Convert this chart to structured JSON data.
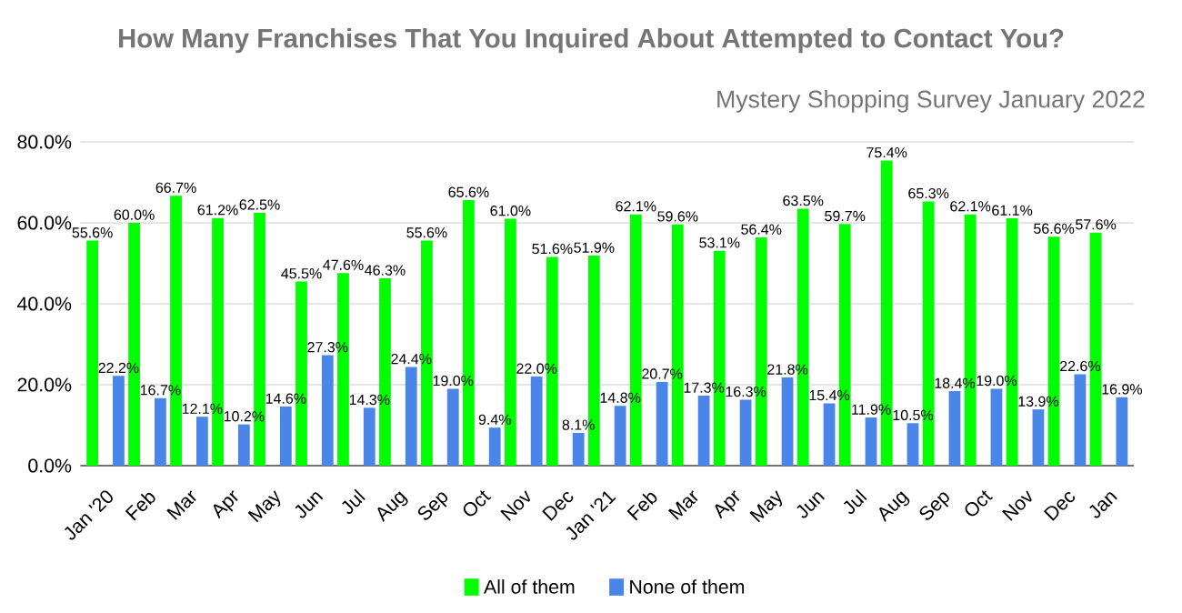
{
  "chart_data": {
    "type": "bar",
    "title": "How Many Franchises That You Inquired About Attempted to Contact You?",
    "subtitle": "Mystery Shopping Survey January 2022",
    "categories": [
      "Jan '20",
      "Feb",
      "Mar",
      "Apr",
      "May",
      "Jun",
      "Jul",
      "Aug",
      "Sep",
      "Oct",
      "Nov",
      "Dec",
      "Jan '21",
      "Feb",
      "Mar",
      "Apr",
      "May",
      "Jun",
      "Jul",
      "Aug",
      "Sep",
      "Oct",
      "Nov",
      "Dec",
      "Jan"
    ],
    "series": [
      {
        "name": "All of them",
        "color": "#00ff00",
        "values": [
          55.6,
          60.0,
          66.7,
          61.2,
          62.5,
          45.5,
          47.6,
          46.3,
          55.6,
          65.6,
          61.0,
          51.6,
          51.9,
          62.1,
          59.6,
          53.1,
          56.4,
          63.5,
          59.7,
          75.4,
          65.3,
          62.1,
          61.1,
          56.6,
          57.6
        ],
        "value_labels": [
          "55.6%",
          "60.0%",
          "66.7%",
          "61.2%",
          "62.5%",
          "45.5%",
          "47.6%",
          "46.3%",
          "55.6%",
          "65.6%",
          "61.0%",
          "51.6%",
          "51.9%",
          "62.1%",
          "59.6%",
          "53.1%",
          "56.4%",
          "63.5%",
          "59.7%",
          "75.4%",
          "65.3%",
          "62.1%",
          "61.1%",
          "56.6%",
          "57.6%"
        ]
      },
      {
        "name": "None of them",
        "color": "#4a86e8",
        "values": [
          22.2,
          16.7,
          12.1,
          10.2,
          14.6,
          27.3,
          14.3,
          24.4,
          19.0,
          9.4,
          22.0,
          8.1,
          14.8,
          20.7,
          17.3,
          16.3,
          21.8,
          15.4,
          11.9,
          10.5,
          18.4,
          19.0,
          13.9,
          22.6,
          16.9
        ],
        "value_labels": [
          "22.2%",
          "16.7%",
          "12.1%",
          "10.2%",
          "14.6%",
          "27.3%",
          "14.3%",
          "24.4%",
          "19.0%",
          "9.4%",
          "22.0%",
          "8.1%",
          "14.8%",
          "20.7%",
          "17.3%",
          "16.3%",
          "21.8%",
          "15.4%",
          "11.9%",
          "10.5%",
          "18.4%",
          "19.0%",
          "13.9%",
          "22.6%",
          "16.9%"
        ]
      }
    ],
    "ylim": [
      0,
      80
    ],
    "yticks": [
      {
        "value": 0,
        "label": "0.0%"
      },
      {
        "value": 20,
        "label": "20.0%"
      },
      {
        "value": 40,
        "label": "40.0%"
      },
      {
        "value": 60,
        "label": "60.0%"
      },
      {
        "value": 80,
        "label": "80.0%"
      }
    ],
    "grid": "y",
    "legend": "bottom"
  }
}
